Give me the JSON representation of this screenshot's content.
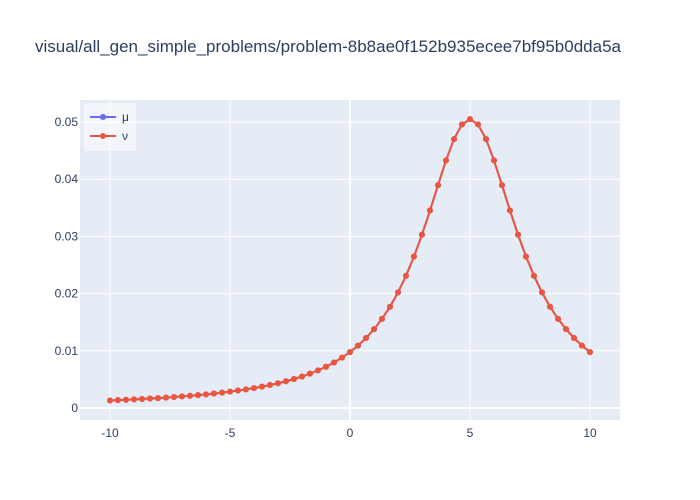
{
  "chart_data": {
    "type": "line",
    "title": "visual/all_gen_simple_problems/problem-8b8ae0f152b935ecee7bf95b0dda5a",
    "x": [
      -10,
      -9.667,
      -9.333,
      -9,
      -8.667,
      -8.333,
      -8,
      -7.667,
      -7.333,
      -7,
      -6.667,
      -6.333,
      -6,
      -5.667,
      -5.333,
      -5,
      -4.667,
      -4.333,
      -4,
      -3.667,
      -3.333,
      -3,
      -2.667,
      -2.333,
      -2,
      -1.667,
      -1.333,
      -1,
      -0.667,
      -0.333,
      0,
      0.333,
      0.667,
      1,
      1.333,
      1.667,
      2,
      2.333,
      2.667,
      3,
      3.333,
      3.667,
      4,
      4.333,
      4.667,
      5,
      5.333,
      5.667,
      6,
      6.333,
      6.667,
      7,
      7.333,
      7.667,
      8,
      8.333,
      8.667,
      9,
      9.333,
      9.667,
      10
    ],
    "series": [
      {
        "name": "μ",
        "color": "#636efa",
        "values": [
          0.001312,
          0.001371,
          0.001434,
          0.001501,
          0.001572,
          0.001649,
          0.001732,
          0.001821,
          0.001917,
          0.002021,
          0.002133,
          0.002255,
          0.002387,
          0.002531,
          0.002688,
          0.00286,
          0.003048,
          0.003255,
          0.003484,
          0.003737,
          0.004018,
          0.00433,
          0.004679,
          0.005071,
          0.005511,
          0.006009,
          0.006574,
          0.007216,
          0.007953,
          0.0088,
          0.009777,
          0.01091,
          0.01223,
          0.01378,
          0.01559,
          0.01771,
          0.02021,
          0.02311,
          0.02648,
          0.03031,
          0.03452,
          0.03896,
          0.04329,
          0.04702,
          0.04958,
          0.0505,
          0.04958,
          0.04702,
          0.04329,
          0.03896,
          0.03452,
          0.03031,
          0.02648,
          0.02311,
          0.02021,
          0.01771,
          0.01559,
          0.01378,
          0.01223,
          0.01091,
          0.009777
        ]
      },
      {
        "name": "ν",
        "color": "#EF553B",
        "values": [
          0.001312,
          0.001371,
          0.001434,
          0.001501,
          0.001572,
          0.001649,
          0.001732,
          0.001821,
          0.001917,
          0.002021,
          0.002133,
          0.002255,
          0.002387,
          0.002531,
          0.002688,
          0.00286,
          0.003048,
          0.003255,
          0.003484,
          0.003737,
          0.004018,
          0.00433,
          0.004679,
          0.005071,
          0.005511,
          0.006009,
          0.006574,
          0.007216,
          0.007953,
          0.0088,
          0.009777,
          0.01091,
          0.01223,
          0.01378,
          0.01559,
          0.01771,
          0.02021,
          0.02311,
          0.02648,
          0.03031,
          0.03452,
          0.03896,
          0.04329,
          0.04702,
          0.04958,
          0.0505,
          0.04958,
          0.04702,
          0.04329,
          0.03896,
          0.03452,
          0.03031,
          0.02648,
          0.02311,
          0.02021,
          0.01771,
          0.01559,
          0.01378,
          0.01223,
          0.01091,
          0.009777
        ]
      }
    ],
    "xlim": [
      -11.25,
      11.25
    ],
    "xticks": [
      -10,
      -5,
      0,
      5,
      10
    ],
    "ylim": [
      -0.0021,
      0.05385
    ],
    "yticks": [
      0,
      0.01,
      0.02,
      0.03,
      0.04,
      0.05
    ],
    "grid": true,
    "legend": "top-left"
  }
}
